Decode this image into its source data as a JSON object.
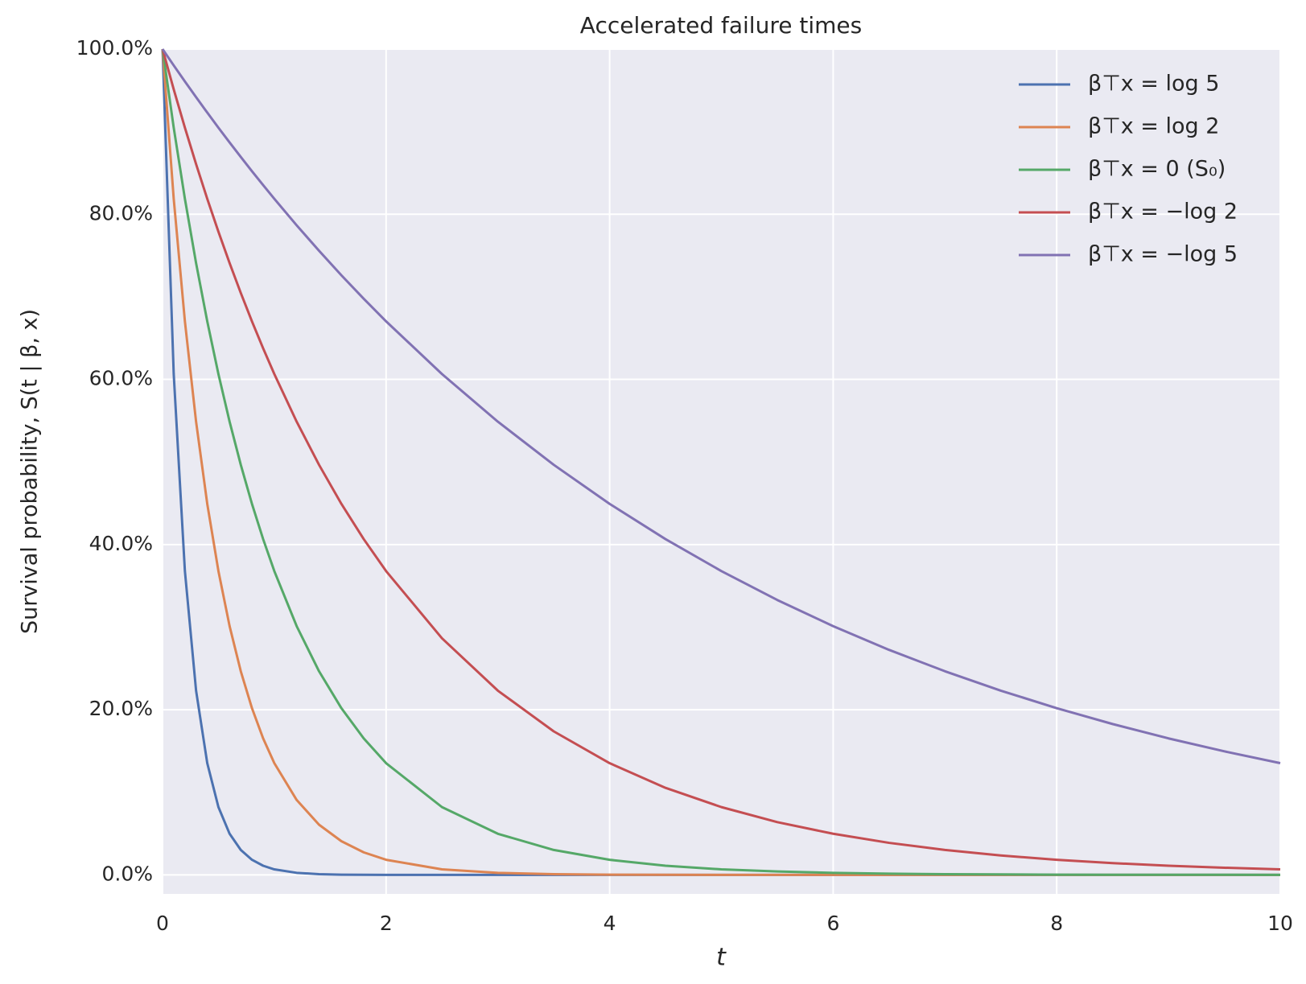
{
  "chart_data": {
    "type": "line",
    "title": "Accelerated failure times",
    "x_label": "t",
    "y_label": "Survival probability, S(t | β, x)",
    "x": [
      0,
      0.1,
      0.2,
      0.3,
      0.4,
      0.5,
      0.6,
      0.7,
      0.8,
      0.9,
      1.0,
      1.2,
      1.4,
      1.6,
      1.8,
      2.0,
      2.5,
      3,
      3.5,
      4,
      4.5,
      5,
      5.5,
      6,
      6.5,
      7,
      7.5,
      8,
      8.5,
      9,
      9.5,
      10
    ],
    "series": [
      {
        "name": "β⊤x = log 5",
        "color": "#4c72b0",
        "values": [
          100,
          60.65,
          36.79,
          22.31,
          13.53,
          8.21,
          4.98,
          3.02,
          1.83,
          1.11,
          0.67,
          0.25,
          0.09,
          0.03,
          0.01,
          0,
          0,
          0,
          0,
          0,
          0,
          0,
          0,
          0,
          0,
          0,
          0,
          0,
          0,
          0,
          0,
          0
        ]
      },
      {
        "name": "β⊤x = log 2",
        "color": "#dd8452",
        "values": [
          100,
          81.87,
          67.03,
          54.88,
          44.93,
          36.79,
          30.12,
          24.66,
          20.19,
          16.53,
          13.53,
          9.07,
          6.08,
          4.08,
          2.73,
          1.83,
          0.67,
          0.25,
          0.09,
          0.03,
          0.01,
          0,
          0,
          0,
          0,
          0,
          0,
          0,
          0,
          0,
          0,
          0
        ]
      },
      {
        "name": "β⊤x = 0 (S₀)",
        "color": "#55a868",
        "values": [
          100,
          90.48,
          81.87,
          74.08,
          67.03,
          60.65,
          54.88,
          49.66,
          44.93,
          40.66,
          36.79,
          30.12,
          24.66,
          20.19,
          16.53,
          13.53,
          8.21,
          4.98,
          3.02,
          1.83,
          1.11,
          0.67,
          0.41,
          0.25,
          0.15,
          0.09,
          0.06,
          0.03,
          0.02,
          0.01,
          0.01,
          0
        ]
      },
      {
        "name": "β⊤x = −log 2",
        "color": "#c44e52",
        "values": [
          100,
          95.12,
          90.48,
          86.07,
          81.87,
          77.88,
          74.08,
          70.47,
          67.03,
          63.76,
          60.65,
          54.88,
          49.66,
          44.93,
          40.66,
          36.79,
          28.65,
          22.31,
          17.38,
          13.53,
          10.54,
          8.21,
          6.39,
          4.98,
          3.88,
          3.02,
          2.35,
          1.83,
          1.43,
          1.11,
          0.87,
          0.67
        ]
      },
      {
        "name": "β⊤x = −log 5",
        "color": "#8172b3",
        "values": [
          100,
          98.02,
          96.08,
          94.18,
          92.31,
          90.48,
          88.69,
          86.94,
          85.21,
          83.53,
          81.87,
          78.66,
          75.58,
          72.61,
          69.77,
          67.03,
          60.65,
          54.88,
          49.66,
          44.93,
          40.66,
          36.79,
          33.29,
          30.12,
          27.25,
          24.66,
          22.31,
          20.19,
          18.27,
          16.53,
          14.96,
          13.53
        ]
      }
    ],
    "xlim": [
      0,
      10
    ],
    "xticks": [
      0,
      2,
      4,
      6,
      8,
      10
    ],
    "ylim": [
      -2.3,
      100
    ],
    "yticks": [
      {
        "value": 0,
        "label": "0.0%"
      },
      {
        "value": 20,
        "label": "20.0%"
      },
      {
        "value": 40,
        "label": "40.0%"
      },
      {
        "value": 60,
        "label": "60.0%"
      },
      {
        "value": 80,
        "label": "80.0%"
      },
      {
        "value": 100,
        "label": "100.0%"
      }
    ],
    "grid": true,
    "legend": "upper right"
  }
}
